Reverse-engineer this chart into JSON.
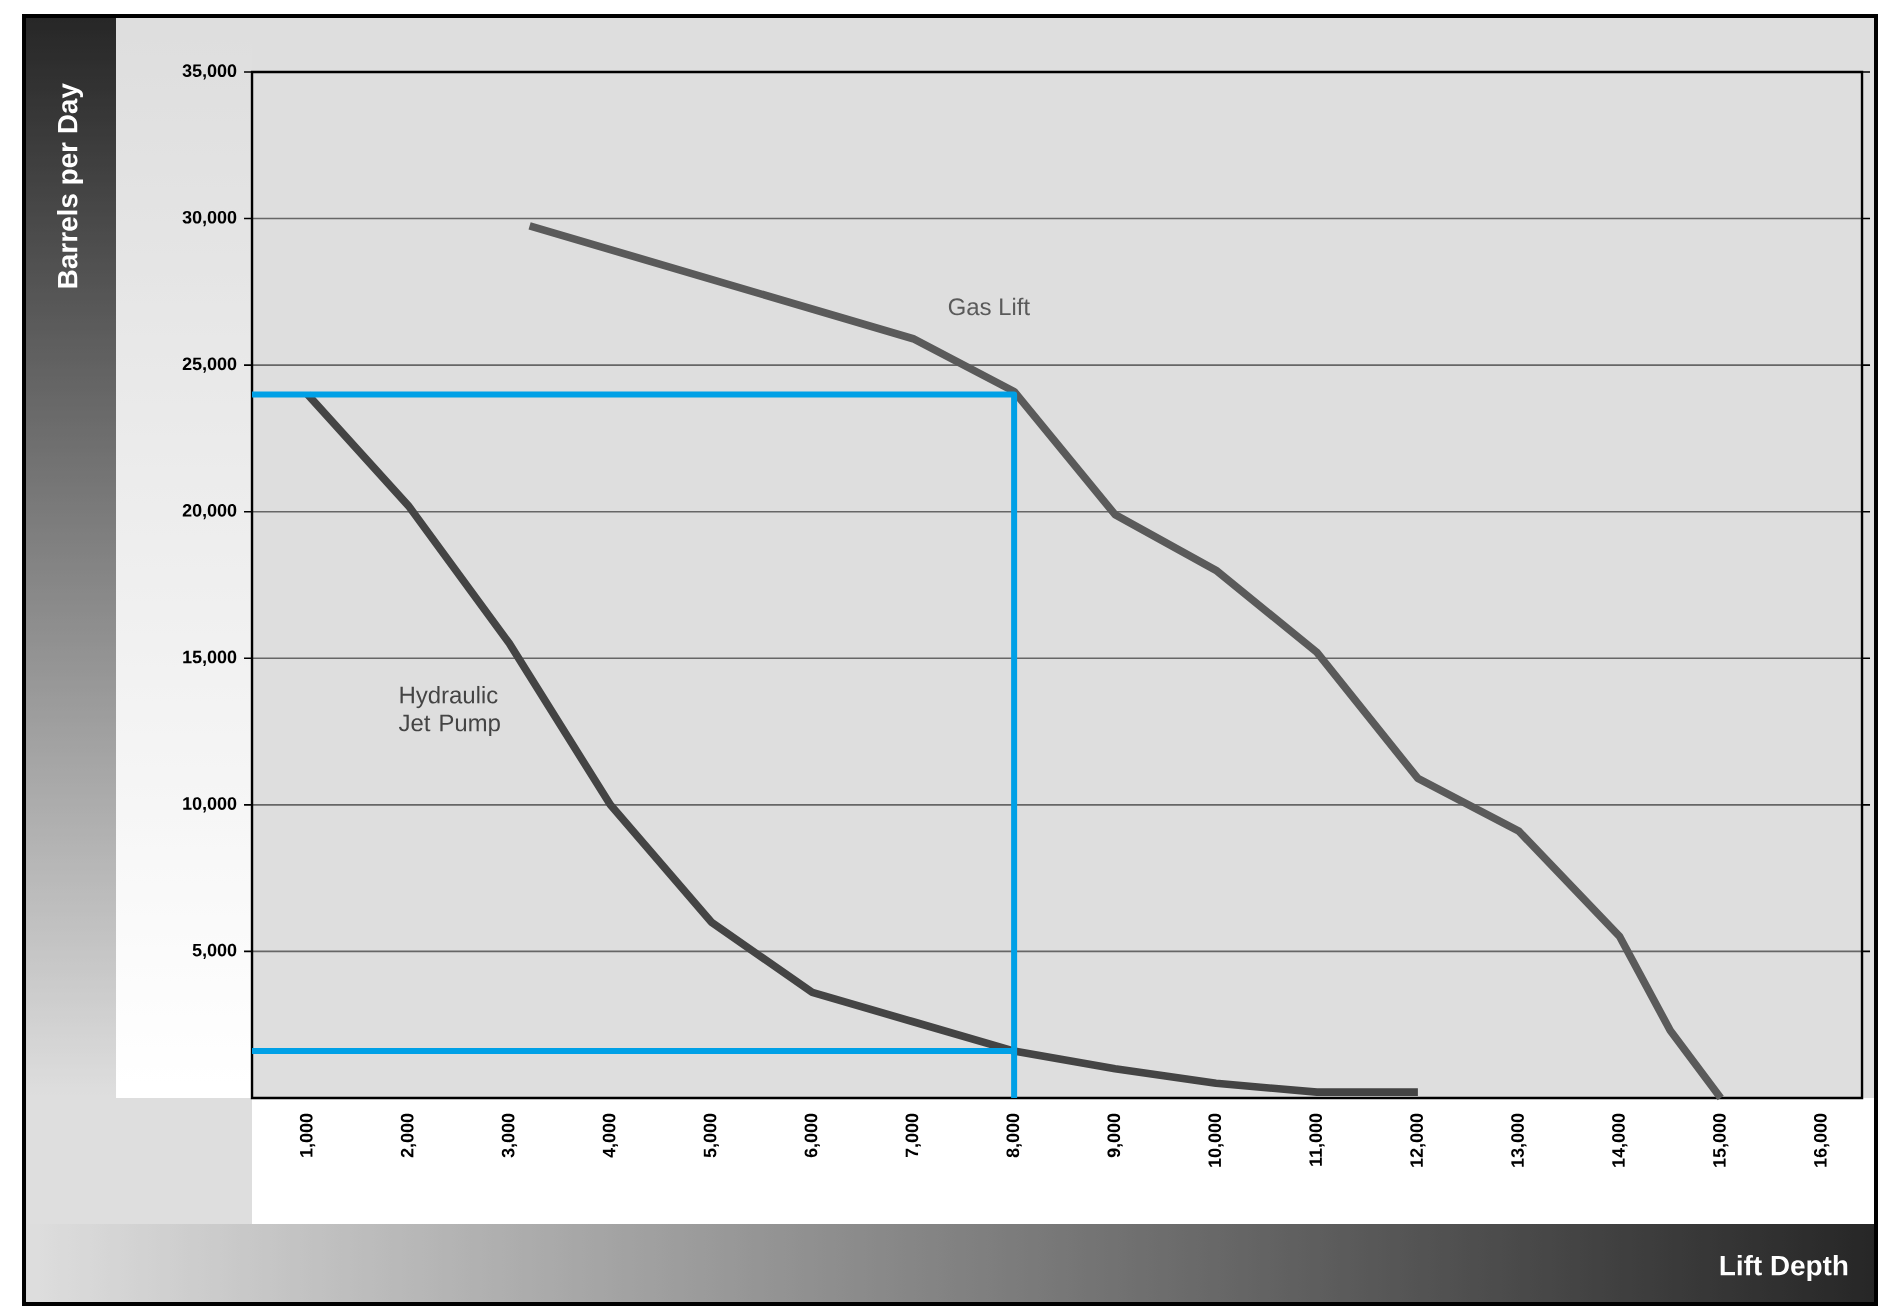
{
  "chart_data": {
    "type": "line",
    "xlabel": "Lift Depth",
    "ylabel": "Barrels per Day",
    "xlim": [
      450,
      16400
    ],
    "ylim": [
      0,
      35000
    ],
    "xticks": [
      {
        "value": 1000,
        "label": "1,000"
      },
      {
        "value": 2000,
        "label": "2,000"
      },
      {
        "value": 3000,
        "label": "3,000"
      },
      {
        "value": 4000,
        "label": "4,000"
      },
      {
        "value": 5000,
        "label": "5,000"
      },
      {
        "value": 6000,
        "label": "6,000"
      },
      {
        "value": 7000,
        "label": "7,000"
      },
      {
        "value": 8000,
        "label": "8,000"
      },
      {
        "value": 9000,
        "label": "9,000"
      },
      {
        "value": 10000,
        "label": "10,000"
      },
      {
        "value": 11000,
        "label": "11,000"
      },
      {
        "value": 12000,
        "label": "12,000"
      },
      {
        "value": 13000,
        "label": "13,000"
      },
      {
        "value": 14000,
        "label": "14,000"
      },
      {
        "value": 15000,
        "label": "15,000"
      },
      {
        "value": 16000,
        "label": "16,000"
      }
    ],
    "yticks": [
      {
        "value": 5000,
        "label": "5,000"
      },
      {
        "value": 10000,
        "label": "10,000"
      },
      {
        "value": 15000,
        "label": "15,000"
      },
      {
        "value": 20000,
        "label": "20,000"
      },
      {
        "value": 25000,
        "label": "25,000"
      },
      {
        "value": 30000,
        "label": "30,000"
      },
      {
        "value": 35000,
        "label": "35,000"
      }
    ],
    "grid": "y",
    "series": [
      {
        "name": "Gas Lift",
        "color": "#5a5a5a",
        "x": [
          3200,
          7000,
          8000,
          9000,
          10000,
          11000,
          12000,
          13000,
          14000,
          14500,
          15000
        ],
        "values": [
          29750,
          25900,
          24100,
          19900,
          18000,
          15200,
          10900,
          9100,
          5500,
          2300,
          0
        ]
      },
      {
        "name": "Hydraulic Jet Pump",
        "color": "#444444",
        "x": [
          1000,
          2000,
          3000,
          4000,
          5000,
          6000,
          7000,
          8000,
          9000,
          10000,
          11000,
          12000
        ],
        "values": [
          24000,
          20200,
          15500,
          10000,
          6000,
          3600,
          2600,
          1600,
          1000,
          500,
          200,
          200
        ]
      },
      {
        "color": "#00a0e6",
        "x": [
          450,
          8000,
          8000
        ],
        "values": [
          24000,
          24000,
          0
        ]
      },
      {
        "color": "#00a0e6",
        "x": [
          450,
          8000
        ],
        "values": [
          1600,
          1600
        ]
      }
    ]
  }
}
